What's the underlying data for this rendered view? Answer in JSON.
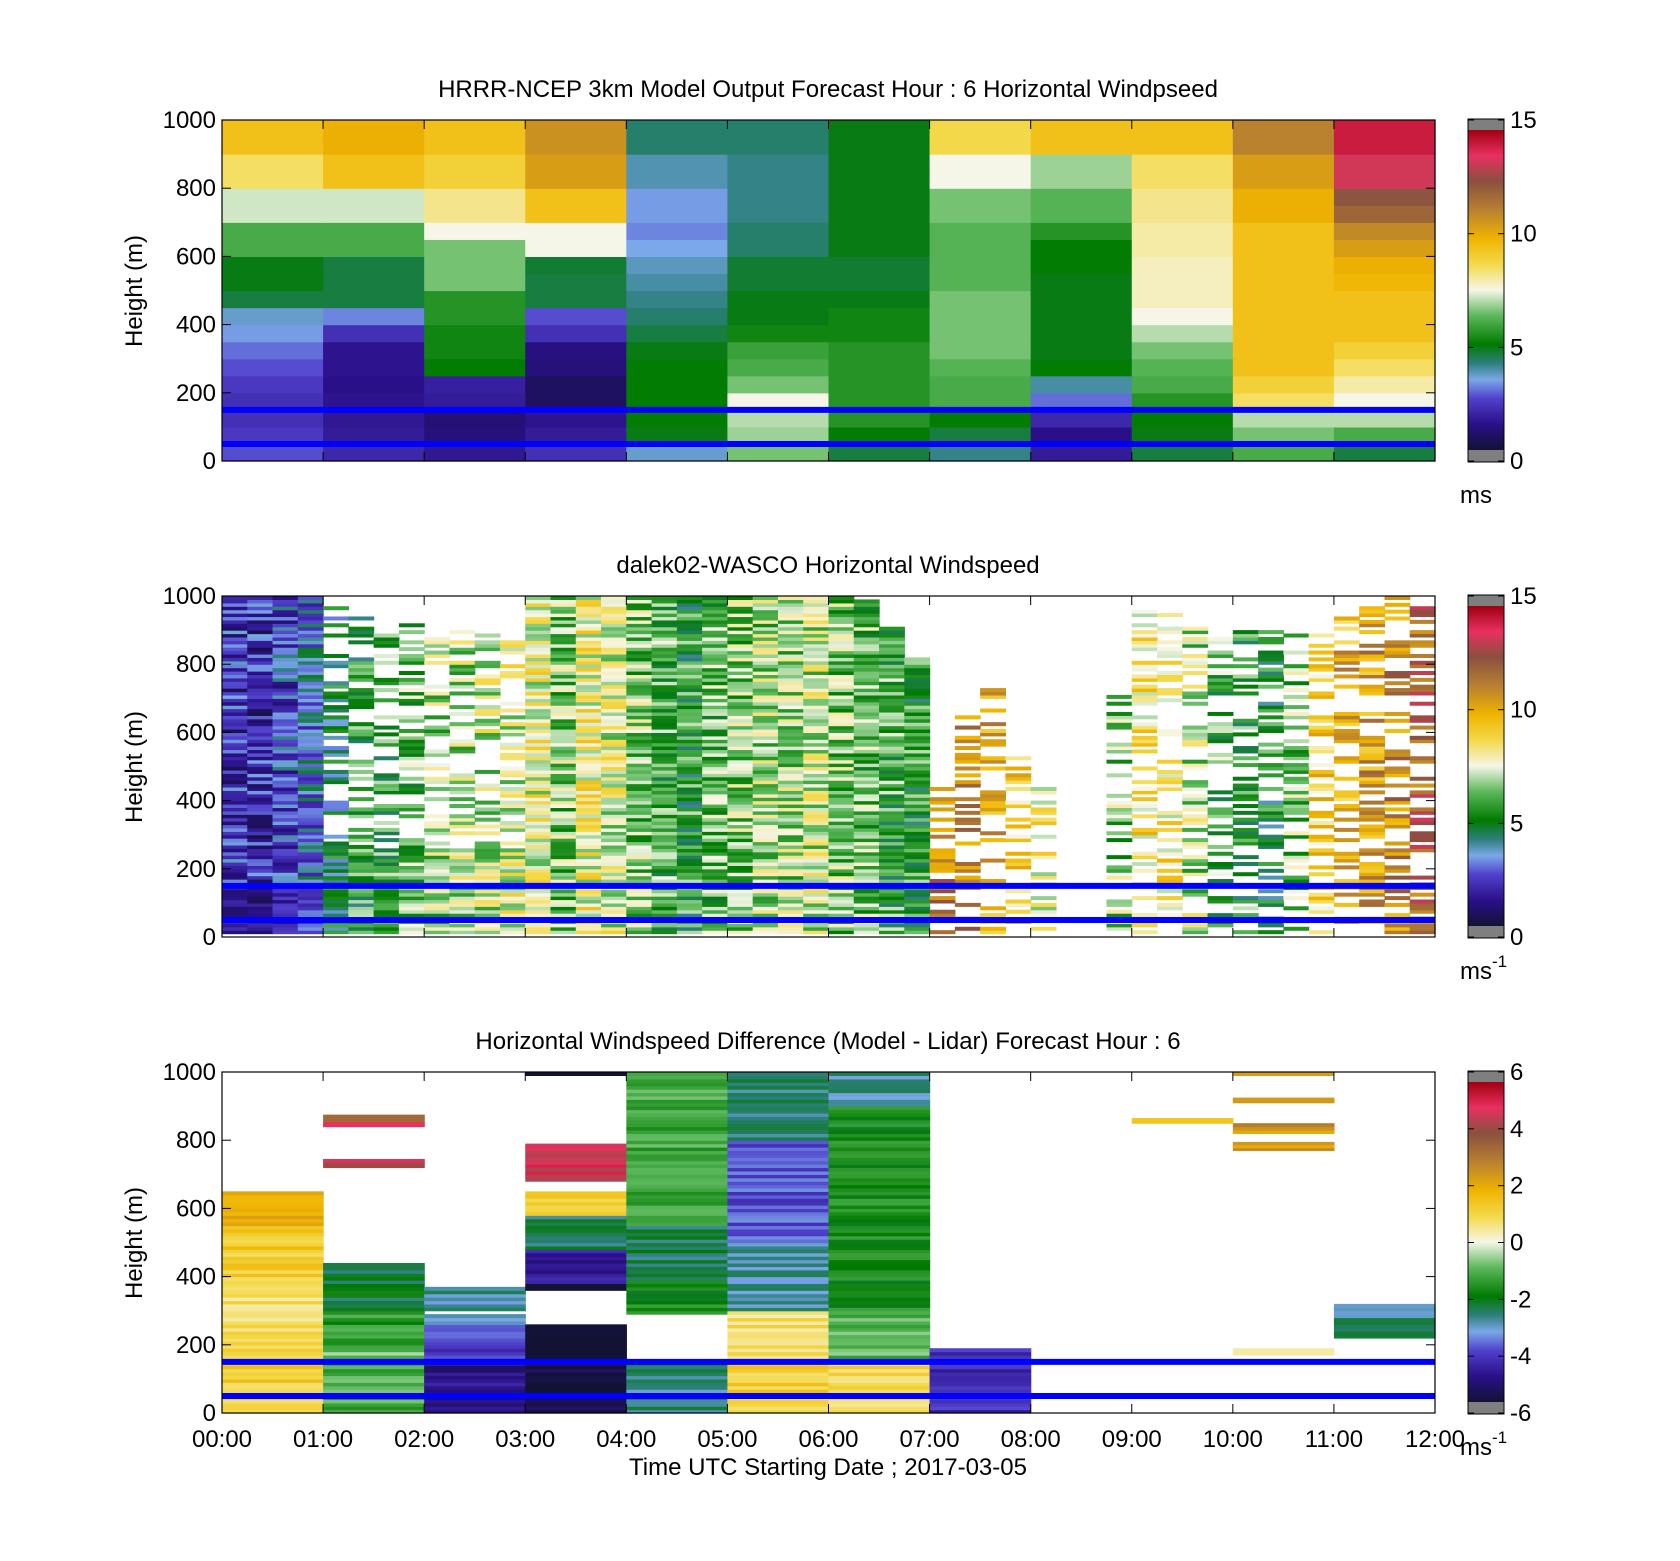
{
  "chart_data": [
    {
      "type": "heatmap",
      "title": "HRRR-NCEP 3km Model Output   Forecast Hour : 6 Horizontal Windpseed",
      "ylabel": "Height (m)",
      "xlabel": "",
      "xlim": [
        "00:00",
        "12:00"
      ],
      "ylim": [
        0,
        1000
      ],
      "yticks": [
        "0",
        "200",
        "400",
        "600",
        "800",
        "1000"
      ],
      "colorbar": {
        "ticks": [
          "0",
          "5",
          "10",
          "15"
        ],
        "range": [
          0,
          15
        ],
        "unit": "ms"
      },
      "height_bins": [
        25,
        75,
        125,
        175,
        225,
        275,
        325,
        375,
        425,
        475,
        525,
        575,
        625,
        675,
        725,
        775,
        825,
        875,
        925,
        975
      ],
      "time_bins": [
        "00:00",
        "01:00",
        "02:00",
        "03:00",
        "04:00",
        "05:00",
        "06:00",
        "07:00",
        "08:00",
        "09:00",
        "10:00",
        "11:00"
      ],
      "values": [
        [
          2.5,
          1.8,
          1.4,
          2.0,
          3.5,
          6.5,
          4.5,
          4.0,
          1.5,
          4.5,
          6.0,
          4.5
        ],
        [
          2.2,
          1.5,
          1.0,
          1.5,
          4.8,
          6.8,
          5.0,
          4.5,
          1.2,
          4.8,
          6.5,
          6.0
        ],
        [
          2.0,
          1.4,
          0.9,
          1.3,
          5.0,
          7.0,
          5.5,
          5.0,
          1.8,
          5.0,
          7.0,
          7.0
        ],
        [
          2.0,
          1.3,
          1.5,
          0.6,
          5.0,
          7.5,
          5.5,
          6.0,
          2.8,
          5.5,
          8.5,
          7.5
        ],
        [
          2.2,
          1.2,
          1.6,
          0.6,
          5.0,
          6.5,
          5.5,
          6.0,
          3.8,
          6.0,
          9.0,
          8.0
        ],
        [
          2.5,
          1.3,
          5.0,
          1.0,
          5.0,
          6.0,
          5.5,
          6.2,
          5.0,
          6.2,
          9.5,
          8.5
        ],
        [
          2.8,
          1.3,
          5.2,
          1.1,
          4.8,
          5.8,
          5.5,
          6.5,
          4.8,
          6.5,
          9.5,
          9.0
        ],
        [
          3.2,
          2.0,
          5.2,
          2.0,
          4.5,
          5.2,
          5.2,
          6.5,
          4.8,
          7.0,
          9.5,
          9.5
        ],
        [
          3.5,
          3.0,
          5.5,
          2.5,
          4.2,
          4.8,
          5.2,
          6.5,
          4.8,
          7.5,
          9.5,
          9.5
        ],
        [
          4.5,
          4.5,
          5.5,
          4.5,
          4.0,
          4.8,
          4.8,
          6.5,
          4.8,
          7.8,
          9.5,
          9.5
        ],
        [
          4.8,
          4.5,
          6.5,
          4.5,
          3.8,
          4.6,
          4.6,
          6.2,
          4.8,
          7.8,
          9.5,
          9.8
        ],
        [
          4.8,
          4.5,
          6.5,
          4.6,
          3.6,
          4.6,
          4.6,
          6.2,
          5.0,
          7.8,
          9.5,
          10.0
        ],
        [
          6.0,
          6.0,
          6.5,
          7.5,
          3.3,
          4.2,
          4.8,
          6.2,
          5.0,
          8.0,
          9.5,
          10.5
        ],
        [
          6.0,
          6.0,
          7.5,
          7.5,
          3.0,
          4.2,
          4.8,
          6.2,
          5.5,
          8.0,
          9.5,
          11.0
        ],
        [
          7.2,
          7.2,
          8.2,
          9.5,
          3.2,
          4.0,
          4.8,
          6.5,
          6.2,
          8.2,
          10.0,
          12.0
        ],
        [
          7.2,
          7.2,
          8.2,
          9.5,
          3.2,
          4.0,
          4.8,
          6.5,
          6.2,
          8.2,
          10.0,
          12.5
        ],
        [
          8.5,
          9.5,
          9.0,
          10.5,
          3.7,
          4.0,
          4.8,
          7.5,
          6.8,
          8.5,
          10.5,
          13.5
        ],
        [
          8.5,
          9.5,
          9.0,
          10.5,
          3.7,
          4.0,
          4.8,
          7.5,
          6.8,
          8.5,
          10.5,
          13.5
        ],
        [
          9.5,
          10.0,
          9.5,
          10.8,
          4.2,
          4.2,
          4.8,
          8.7,
          9.5,
          9.5,
          11.2,
          14.3
        ],
        [
          9.5,
          10.0,
          9.5,
          10.8,
          4.2,
          4.2,
          4.8,
          8.7,
          9.5,
          9.5,
          11.2,
          14.3
        ]
      ],
      "reference_lines_m": [
        150,
        50
      ]
    },
    {
      "type": "heatmap",
      "title": "dalek02-WASCO  Horizontal Windspeed",
      "ylabel": "Height (m)",
      "xlabel": "",
      "xlim": [
        "00:00",
        "12:00"
      ],
      "ylim": [
        0,
        1000
      ],
      "yticks": [
        "0",
        "200",
        "400",
        "600",
        "800",
        "1000"
      ],
      "colorbar": {
        "ticks": [
          "0",
          "5",
          "10",
          "15"
        ],
        "range": [
          0,
          15
        ],
        "unit": "ms",
        "unit_exp": "-1"
      },
      "time_bins": [
        "00:00",
        "00:15",
        "00:30",
        "00:45",
        "01:00",
        "01:15",
        "01:30",
        "01:45",
        "02:00",
        "02:15",
        "02:30",
        "02:45",
        "03:00",
        "03:15",
        "03:30",
        "03:45",
        "04:00",
        "04:15",
        "04:30",
        "04:45",
        "05:00",
        "05:15",
        "05:30",
        "05:45",
        "06:00",
        "06:15",
        "06:30",
        "06:45",
        "07:00",
        "07:15",
        "07:30",
        "07:45",
        "08:00",
        "08:15",
        "08:30",
        "08:45",
        "09:00",
        "09:15",
        "09:30",
        "09:45",
        "10:00",
        "10:15",
        "10:30",
        "10:45",
        "11:00",
        "11:15",
        "11:30",
        "11:45"
      ],
      "profile_centers": [
        2.0,
        1.8,
        2.5,
        3.2,
        4.5,
        5.5,
        5.8,
        6.2,
        6.8,
        7.0,
        7.2,
        7.5,
        7.8,
        6.5,
        8.0,
        7.5,
        6.5,
        6.0,
        5.5,
        6.2,
        6.5,
        6.8,
        6.8,
        7.2,
        6.5,
        6.2,
        5.8,
        5.5,
        11.5,
        11.0,
        10.0,
        9.0,
        8.0,
        7.5,
        6.5,
        6.5,
        8.5,
        8.5,
        7.0,
        6.0,
        5.5,
        5.0,
        6.5,
        9.0,
        10.0,
        10.5,
        11.0,
        12.0
      ],
      "coverage_top_m": [
        1000,
        1000,
        1000,
        1000,
        960,
        940,
        930,
        920,
        900,
        890,
        880,
        860,
        1000,
        1000,
        1000,
        1000,
        1000,
        1000,
        1000,
        1000,
        1000,
        1000,
        1000,
        1000,
        1000,
        980,
        900,
        810,
        440,
        640,
        720,
        520,
        440,
        0,
        0,
        700,
        950,
        950,
        900,
        880,
        900,
        900,
        880,
        880,
        940,
        960,
        1000,
        1000
      ],
      "reference_lines_m": [
        150,
        50
      ]
    },
    {
      "type": "heatmap",
      "title": "Horizontal Windspeed Difference (Model - Lidar) Forecast Hour : 6",
      "ylabel": "Height (m)",
      "xlabel": "Time UTC  Starting Date ; 2017-03-05",
      "xlim": [
        "00:00",
        "12:00"
      ],
      "ylim": [
        0,
        1000
      ],
      "yticks": [
        "0",
        "200",
        "400",
        "600",
        "800",
        "1000"
      ],
      "xticks": [
        "00:00",
        "01:00",
        "02:00",
        "03:00",
        "04:00",
        "05:00",
        "06:00",
        "07:00",
        "08:00",
        "09:00",
        "10:00",
        "11:00",
        "12:00"
      ],
      "colorbar": {
        "ticks": [
          "-6",
          "-4",
          "-2",
          "0",
          "2",
          "4",
          "6"
        ],
        "range": [
          -6,
          6
        ],
        "unit": "ms",
        "unit_exp": "-1"
      },
      "blocks": [
        {
          "hour": "00:00",
          "bands": [
            [
              0,
              200,
              1.2
            ],
            [
              200,
              400,
              0.8
            ],
            [
              400,
              550,
              1.3
            ],
            [
              550,
              650,
              2.2
            ]
          ]
        },
        {
          "hour": "01:00",
          "bands": [
            [
              0,
              150,
              -1.2
            ],
            [
              150,
              180,
              -0.8
            ],
            [
              180,
              300,
              -1.5
            ],
            [
              300,
              440,
              -2.3
            ],
            [
              720,
              745,
              4.5
            ],
            [
              840,
              855,
              5.0
            ],
            [
              855,
              875,
              3.5
            ]
          ]
        },
        {
          "hour": "02:00",
          "bands": [
            [
              0,
              150,
              -5.0
            ],
            [
              150,
              260,
              -4.2
            ],
            [
              260,
              290,
              -3.5
            ],
            [
              300,
              370,
              -3.0
            ]
          ]
        },
        {
          "hour": "03:00",
          "bands": [
            [
              0,
              150,
              -5.8
            ],
            [
              150,
              260,
              -6.4
            ],
            [
              360,
              380,
              -6.4
            ],
            [
              380,
              480,
              -4.8
            ],
            [
              480,
              580,
              -2.5
            ],
            [
              580,
              650,
              1.0
            ],
            [
              680,
              790,
              4.8
            ],
            [
              990,
              1000,
              -6.4
            ]
          ]
        },
        {
          "hour": "04:00",
          "bands": [
            [
              0,
              150,
              -2.8
            ],
            [
              290,
              390,
              -1.8
            ],
            [
              390,
              550,
              -2.5
            ],
            [
              550,
              1000,
              -1.3
            ]
          ]
        },
        {
          "hour": "05:00",
          "bands": [
            [
              0,
              150,
              1.2
            ],
            [
              150,
              300,
              0.8
            ],
            [
              300,
              500,
              -3.0
            ],
            [
              500,
              800,
              -4.0
            ],
            [
              800,
              1000,
              -2.8
            ]
          ]
        },
        {
          "hour": "06:00",
          "bands": [
            [
              0,
              150,
              0.9
            ],
            [
              150,
              300,
              -1.0
            ],
            [
              300,
              900,
              -1.8
            ],
            [
              900,
              1000,
              -3.0
            ]
          ]
        },
        {
          "hour": "07:00",
          "bands": [
            [
              0,
              190,
              -4.5
            ]
          ]
        },
        {
          "hour": "09:00",
          "bands": [
            [
              850,
              865,
              1.5
            ]
          ]
        },
        {
          "hour": "10:00",
          "bands": [
            [
              170,
              190,
              0.4
            ],
            [
              770,
              795,
              2.5
            ],
            [
              820,
              850,
              2.6
            ],
            [
              910,
              925,
              2.5
            ],
            [
              990,
              1000,
              2.4
            ]
          ]
        },
        {
          "hour": "11:00",
          "bands": [
            [
              220,
              320,
              -2.8
            ]
          ]
        }
      ],
      "reference_lines_m": [
        150,
        50
      ]
    }
  ]
}
